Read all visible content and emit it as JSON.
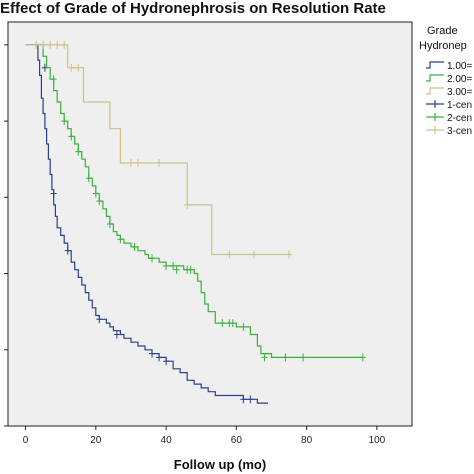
{
  "chart_data": {
    "type": "line",
    "title": "Effect of Grade of Hydronephrosis on Resolution Rate",
    "xlabel": "Follow up (mo)",
    "ylabel": "",
    "xlim": [
      -5,
      110
    ],
    "ylim": [
      0,
      1.06
    ],
    "xticks": [
      0,
      20,
      40,
      60,
      80,
      100
    ],
    "grid": false,
    "legend": {
      "title": "Grade Hydronep",
      "title_lines": [
        "Grade",
        "Hydronep"
      ],
      "placement": "right",
      "entries": [
        "1.00=",
        "2.00=",
        "3.00=",
        "1-cen",
        "2-cen",
        "3-cen"
      ]
    },
    "series": [
      {
        "name": "1.00=",
        "color": "#2a3f8f",
        "steps": [
          [
            0,
            1.0
          ],
          [
            3,
            1.0
          ],
          [
            3.5,
            0.96
          ],
          [
            4,
            0.92
          ],
          [
            4.5,
            0.86
          ],
          [
            5,
            0.82
          ],
          [
            5.5,
            0.78
          ],
          [
            6,
            0.74
          ],
          [
            6.5,
            0.7
          ],
          [
            7,
            0.66
          ],
          [
            7.5,
            0.62
          ],
          [
            8,
            0.58
          ],
          [
            8.5,
            0.55
          ],
          [
            9,
            0.52
          ],
          [
            10,
            0.5
          ],
          [
            11,
            0.48
          ],
          [
            12,
            0.46
          ],
          [
            13,
            0.43
          ],
          [
            14,
            0.41
          ],
          [
            15,
            0.39
          ],
          [
            16,
            0.37
          ],
          [
            17,
            0.35
          ],
          [
            18,
            0.33
          ],
          [
            19,
            0.31
          ],
          [
            20,
            0.29
          ],
          [
            21,
            0.28
          ],
          [
            23,
            0.27
          ],
          [
            24,
            0.26
          ],
          [
            25,
            0.25
          ],
          [
            27,
            0.24
          ],
          [
            28,
            0.23
          ],
          [
            30,
            0.22
          ],
          [
            32,
            0.21
          ],
          [
            34,
            0.2
          ],
          [
            36,
            0.19
          ],
          [
            38,
            0.18
          ],
          [
            40,
            0.17
          ],
          [
            42,
            0.15
          ],
          [
            44,
            0.14
          ],
          [
            46,
            0.12
          ],
          [
            48,
            0.11
          ],
          [
            50,
            0.1
          ],
          [
            52,
            0.09
          ],
          [
            54,
            0.08
          ],
          [
            62,
            0.07
          ],
          [
            66,
            0.06
          ],
          [
            69,
            0.06
          ]
        ],
        "censor": [
          [
            5.5,
            0.94
          ],
          [
            8,
            0.61
          ],
          [
            12,
            0.46
          ],
          [
            21,
            0.28
          ],
          [
            26,
            0.24
          ],
          [
            36,
            0.19
          ],
          [
            38,
            0.18
          ],
          [
            40,
            0.17
          ],
          [
            62,
            0.07
          ],
          [
            64,
            0.07
          ]
        ]
      },
      {
        "name": "2.00=",
        "color": "#3ab03a",
        "steps": [
          [
            0,
            1.0
          ],
          [
            4,
            1.0
          ],
          [
            5,
            0.97
          ],
          [
            6,
            0.94
          ],
          [
            7,
            0.91
          ],
          [
            8,
            0.88
          ],
          [
            9,
            0.85
          ],
          [
            10,
            0.82
          ],
          [
            11,
            0.8
          ],
          [
            12,
            0.78
          ],
          [
            13,
            0.76
          ],
          [
            14,
            0.74
          ],
          [
            15,
            0.72
          ],
          [
            16,
            0.7
          ],
          [
            17,
            0.68
          ],
          [
            18,
            0.65
          ],
          [
            19,
            0.63
          ],
          [
            20,
            0.61
          ],
          [
            21,
            0.59
          ],
          [
            22,
            0.57
          ],
          [
            23,
            0.55
          ],
          [
            24,
            0.53
          ],
          [
            25,
            0.51
          ],
          [
            26,
            0.5
          ],
          [
            27,
            0.49
          ],
          [
            28,
            0.48
          ],
          [
            30,
            0.47
          ],
          [
            32,
            0.46
          ],
          [
            34,
            0.45
          ],
          [
            35,
            0.44
          ],
          [
            38,
            0.43
          ],
          [
            40,
            0.42
          ],
          [
            45,
            0.41
          ],
          [
            48,
            0.4
          ],
          [
            49,
            0.38
          ],
          [
            50,
            0.35
          ],
          [
            51,
            0.32
          ],
          [
            52,
            0.3
          ],
          [
            54,
            0.27
          ],
          [
            60,
            0.26
          ],
          [
            64,
            0.24
          ],
          [
            66,
            0.21
          ],
          [
            67,
            0.19
          ],
          [
            70,
            0.18
          ],
          [
            96,
            0.18
          ]
        ],
        "censor": [
          [
            8,
            0.91
          ],
          [
            11,
            0.8
          ],
          [
            13,
            0.76
          ],
          [
            15,
            0.72
          ],
          [
            18,
            0.65
          ],
          [
            20,
            0.61
          ],
          [
            21,
            0.59
          ],
          [
            24,
            0.53
          ],
          [
            27,
            0.49
          ],
          [
            31,
            0.47
          ],
          [
            36,
            0.44
          ],
          [
            40,
            0.42
          ],
          [
            42,
            0.42
          ],
          [
            43,
            0.41
          ],
          [
            46,
            0.41
          ],
          [
            47,
            0.41
          ],
          [
            56,
            0.27
          ],
          [
            58,
            0.27
          ],
          [
            59,
            0.27
          ],
          [
            62,
            0.26
          ],
          [
            68,
            0.18
          ],
          [
            74,
            0.18
          ],
          [
            79,
            0.18
          ],
          [
            96,
            0.18
          ]
        ]
      },
      {
        "name": "3.00=",
        "color": "#c9c18a",
        "steps": [
          [
            0,
            1.0
          ],
          [
            11,
            1.0
          ],
          [
            12,
            0.94
          ],
          [
            16,
            0.94
          ],
          [
            16.5,
            0.85
          ],
          [
            23,
            0.85
          ],
          [
            24,
            0.78
          ],
          [
            26,
            0.78
          ],
          [
            27,
            0.69
          ],
          [
            45,
            0.69
          ],
          [
            46,
            0.58
          ],
          [
            52,
            0.58
          ],
          [
            53,
            0.45
          ],
          [
            75,
            0.45
          ]
        ],
        "censor": [
          [
            3,
            1.0
          ],
          [
            5,
            1.0
          ],
          [
            7,
            1.0
          ],
          [
            9,
            1.0
          ],
          [
            11,
            1.0
          ],
          [
            13,
            0.94
          ],
          [
            15,
            0.94
          ],
          [
            30,
            0.69
          ],
          [
            32,
            0.69
          ],
          [
            38,
            0.69
          ],
          [
            46,
            0.58
          ],
          [
            58,
            0.45
          ],
          [
            65,
            0.45
          ],
          [
            75,
            0.45
          ]
        ]
      }
    ]
  }
}
